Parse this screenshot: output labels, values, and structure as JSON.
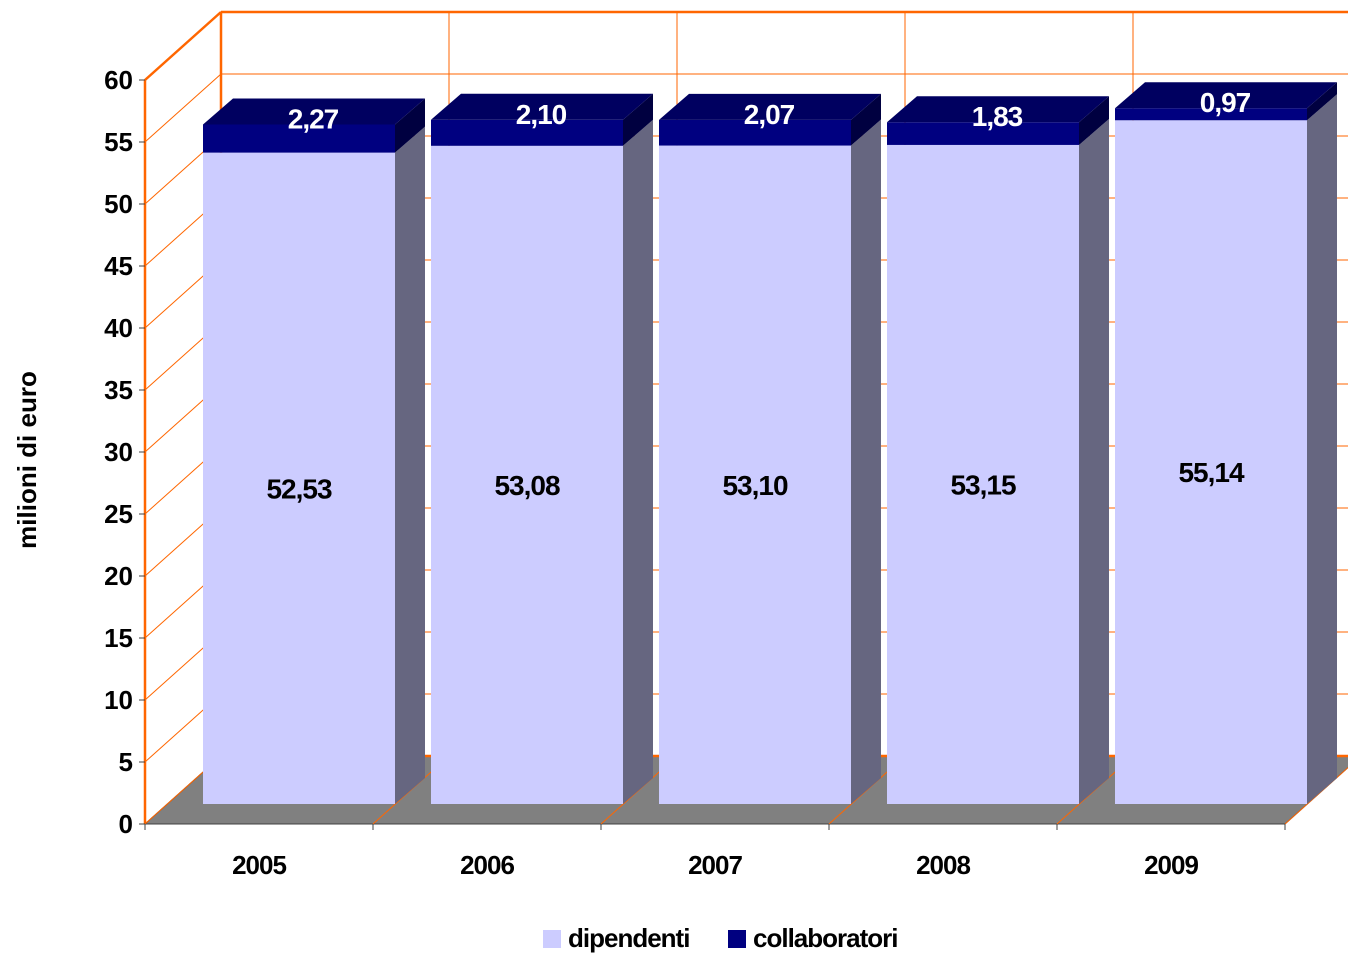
{
  "chart_data": {
    "type": "bar",
    "stacked": true,
    "three_d": true,
    "title": "",
    "xlabel": "",
    "ylabel": "milioni di euro",
    "ylim": [
      0,
      60
    ],
    "ytick_step": 5,
    "categories": [
      "2005",
      "2006",
      "2007",
      "2008",
      "2009"
    ],
    "series": [
      {
        "name": "dipendenti",
        "values": [
          52.53,
          53.08,
          53.1,
          53.15,
          55.14
        ],
        "labels": [
          "52,53",
          "53,08",
          "53,10",
          "53,15",
          "55,14"
        ],
        "color": "#CCCCFF"
      },
      {
        "name": "collaboratori",
        "values": [
          2.27,
          2.1,
          2.07,
          1.83,
          0.97
        ],
        "labels": [
          "2,27",
          "2,10",
          "2,07",
          "1,83",
          "0,97"
        ],
        "color": "#000080"
      }
    ],
    "grid": true,
    "legend_position": "bottom-center",
    "colors": {
      "grid": "#FF6600",
      "floor": "#808080",
      "bar_side_light": "#666680",
      "bar_top_light": "#9999BB",
      "bar_side_dark": "#000040",
      "bar_top_dark": "#000060",
      "axis_text": "#000000",
      "data_label_light": "#000000",
      "data_label_dark": "#FFFFFF"
    }
  }
}
